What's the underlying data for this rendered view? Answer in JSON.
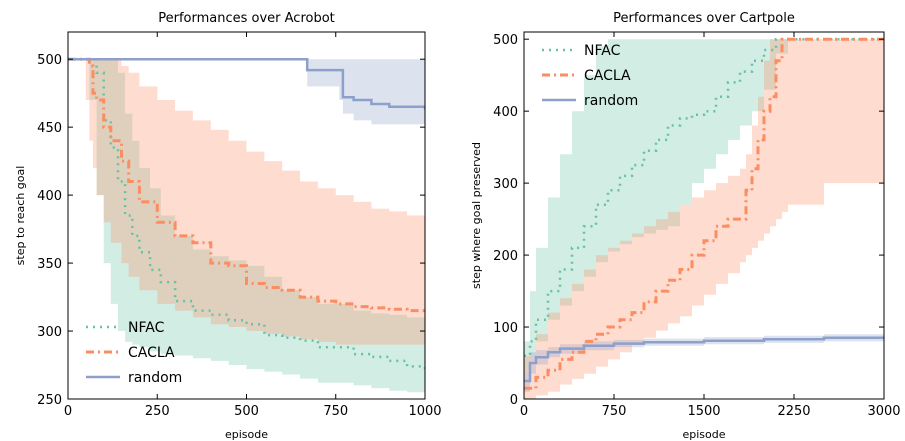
{
  "chart_data": [
    {
      "type": "line",
      "title": "Performances over Acrobot",
      "xlabel": "episode",
      "ylabel": "step to reach goal",
      "xlim": [
        0,
        1000
      ],
      "ylim": [
        250,
        520
      ],
      "xticks": [
        0,
        250,
        500,
        750,
        1000
      ],
      "yticks": [
        250,
        300,
        350,
        400,
        450,
        500
      ],
      "legend_position": "lower-left",
      "series": [
        {
          "name": "NFAC",
          "color": "#66c2a5",
          "style": "dotted",
          "x": [
            0,
            60,
            80,
            100,
            120,
            140,
            160,
            180,
            200,
            230,
            260,
            300,
            350,
            400,
            450,
            500,
            550,
            600,
            650,
            700,
            800,
            850,
            900,
            950,
            1000
          ],
          "y": [
            500,
            500,
            490,
            455,
            435,
            410,
            385,
            370,
            358,
            345,
            336,
            322,
            315,
            312,
            308,
            305,
            297,
            295,
            293,
            288,
            283,
            281,
            278,
            274,
            272
          ],
          "lower": [
            500,
            470,
            400,
            350,
            320,
            300,
            292,
            290,
            288,
            285,
            283,
            282,
            280,
            278,
            275,
            272,
            270,
            268,
            265,
            262,
            260,
            258,
            256,
            255,
            254
          ],
          "upper": [
            500,
            500,
            500,
            500,
            500,
            490,
            460,
            440,
            420,
            405,
            385,
            370,
            360,
            355,
            352,
            348,
            340,
            330,
            325,
            320,
            315,
            313,
            312,
            310,
            310
          ]
        },
        {
          "name": "CACLA",
          "color": "#fc8d62",
          "style": "dashdot",
          "x": [
            0,
            50,
            60,
            70,
            80,
            100,
            120,
            150,
            170,
            200,
            250,
            300,
            350,
            400,
            450,
            500,
            550,
            600,
            650,
            700,
            750,
            800,
            850,
            900,
            950,
            1000
          ],
          "y": [
            500,
            500,
            495,
            475,
            470,
            450,
            440,
            425,
            410,
            395,
            380,
            370,
            365,
            350,
            348,
            335,
            332,
            330,
            325,
            322,
            320,
            318,
            317,
            316,
            315,
            314
          ],
          "lower": [
            500,
            470,
            440,
            420,
            400,
            380,
            365,
            350,
            340,
            330,
            320,
            315,
            310,
            305,
            303,
            300,
            298,
            296,
            294,
            292,
            290,
            290,
            290,
            290,
            290,
            290
          ],
          "upper": [
            500,
            500,
            500,
            500,
            500,
            500,
            500,
            495,
            490,
            480,
            470,
            462,
            455,
            448,
            440,
            432,
            425,
            418,
            410,
            405,
            400,
            395,
            390,
            388,
            385,
            382
          ]
        },
        {
          "name": "random",
          "color": "#8da0cb",
          "style": "solid",
          "x": [
            0,
            650,
            670,
            760,
            770,
            800,
            850,
            900,
            950,
            1000
          ],
          "y": [
            500,
            500,
            492,
            492,
            472,
            470,
            467,
            465,
            465,
            463
          ],
          "lower": [
            500,
            500,
            480,
            470,
            460,
            455,
            452,
            452,
            452,
            450
          ],
          "upper": [
            500,
            500,
            500,
            500,
            500,
            500,
            500,
            500,
            500,
            500
          ]
        }
      ]
    },
    {
      "type": "line",
      "title": "Performances over Cartpole",
      "xlabel": "episode",
      "ylabel": "step where goal preserved",
      "xlim": [
        0,
        3000
      ],
      "ylim": [
        0,
        510
      ],
      "xticks": [
        0,
        750,
        1500,
        2250,
        3000
      ],
      "yticks": [
        0,
        100,
        200,
        300,
        400,
        500
      ],
      "legend_position": "upper-left",
      "series": [
        {
          "name": "NFAC",
          "color": "#66c2a5",
          "style": "dotted",
          "x": [
            0,
            50,
            100,
            200,
            300,
            400,
            500,
            600,
            700,
            800,
            900,
            1000,
            1100,
            1200,
            1300,
            1400,
            1500,
            1600,
            1700,
            1800,
            1900,
            2000,
            2100,
            2200,
            2500,
            3000
          ],
          "y": [
            60,
            80,
            110,
            150,
            180,
            210,
            240,
            270,
            290,
            310,
            325,
            345,
            360,
            380,
            390,
            395,
            400,
            420,
            440,
            455,
            470,
            485,
            500,
            500,
            500,
            500
          ],
          "lower": [
            40,
            60,
            80,
            110,
            130,
            150,
            170,
            190,
            205,
            215,
            225,
            230,
            235,
            240,
            270,
            300,
            320,
            340,
            360,
            380,
            400,
            430,
            480,
            500,
            500,
            500
          ],
          "upper": [
            80,
            150,
            210,
            280,
            340,
            400,
            450,
            490,
            500,
            500,
            500,
            500,
            500,
            500,
            500,
            500,
            500,
            500,
            500,
            500,
            500,
            500,
            500,
            500,
            500,
            500
          ]
        },
        {
          "name": "CACLA",
          "color": "#fc8d62",
          "style": "dashdot",
          "x": [
            0,
            100,
            200,
            300,
            400,
            500,
            600,
            700,
            800,
            900,
            1000,
            1100,
            1200,
            1300,
            1400,
            1500,
            1600,
            1700,
            1800,
            1850,
            1900,
            1950,
            2000,
            2050,
            2100,
            2150,
            2200,
            2500,
            3000
          ],
          "y": [
            15,
            30,
            40,
            55,
            65,
            80,
            90,
            100,
            110,
            120,
            135,
            150,
            165,
            180,
            200,
            220,
            240,
            250,
            250,
            290,
            320,
            360,
            400,
            420,
            470,
            500,
            500,
            500,
            500
          ],
          "lower": [
            0,
            5,
            10,
            20,
            28,
            35,
            45,
            55,
            65,
            75,
            85,
            95,
            105,
            115,
            130,
            145,
            160,
            175,
            190,
            200,
            210,
            220,
            230,
            240,
            250,
            260,
            270,
            300,
            350
          ],
          "upper": [
            60,
            90,
            120,
            140,
            160,
            180,
            200,
            210,
            220,
            230,
            240,
            250,
            260,
            270,
            280,
            290,
            300,
            310,
            320,
            340,
            380,
            420,
            470,
            500,
            500,
            500,
            500,
            500,
            500
          ]
        },
        {
          "name": "random",
          "color": "#8da0cb",
          "style": "solid",
          "x": [
            0,
            50,
            100,
            200,
            300,
            500,
            750,
            1000,
            1500,
            2000,
            2500,
            3000
          ],
          "y": [
            25,
            50,
            58,
            65,
            70,
            74,
            77,
            79,
            81,
            83,
            85,
            87
          ],
          "lower": [
            10,
            35,
            48,
            58,
            63,
            68,
            72,
            74,
            76,
            78,
            80,
            82
          ],
          "upper": [
            40,
            65,
            68,
            72,
            76,
            80,
            82,
            84,
            86,
            88,
            90,
            92
          ]
        }
      ]
    }
  ]
}
